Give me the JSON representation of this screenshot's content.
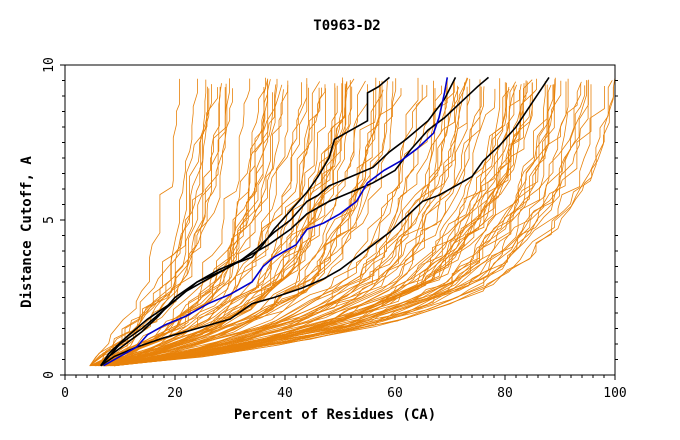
{
  "chart_data": {
    "type": "line",
    "title": "T0963-D2",
    "xlabel": "Percent of Residues (CA)",
    "ylabel": "Distance Cutoff, A",
    "xlim": [
      0,
      100
    ],
    "ylim": [
      0,
      10
    ],
    "x_ticks": [
      0,
      20,
      40,
      60,
      80,
      100
    ],
    "y_ticks": [
      0,
      5,
      10
    ],
    "grid": false,
    "legend": "none",
    "colors": {
      "background_models": "#e8820a",
      "highlight_black": "#000000",
      "highlight_blue": "#0000cc"
    },
    "background_series_count": 120,
    "background_band": {
      "left_edge": [
        [
          4.5,
          0.3
        ],
        [
          8,
          1.2
        ],
        [
          11,
          2.1
        ],
        [
          13.5,
          3.0
        ],
        [
          15,
          4.0
        ],
        [
          16,
          5.0
        ],
        [
          17,
          6.0
        ],
        [
          18,
          7.0
        ],
        [
          19,
          8.0
        ],
        [
          19.5,
          9.0
        ],
        [
          20,
          9.6
        ]
      ],
      "right_edge": [
        [
          9,
          0.3
        ],
        [
          22,
          0.5
        ],
        [
          40,
          1.0
        ],
        [
          58,
          1.6
        ],
        [
          72,
          2.4
        ],
        [
          80,
          3.0
        ],
        [
          86,
          4.0
        ],
        [
          91,
          5.0
        ],
        [
          95,
          6.0
        ],
        [
          98,
          7.5
        ],
        [
          99.5,
          8.5
        ],
        [
          100,
          9.6
        ]
      ]
    },
    "series": [
      {
        "color": "#000000",
        "points": [
          [
            6.5,
            0.3
          ],
          [
            8,
            0.6
          ],
          [
            10,
            1.0
          ],
          [
            14,
            1.5
          ],
          [
            18,
            2.1
          ],
          [
            22,
            2.7
          ],
          [
            27,
            3.2
          ],
          [
            31,
            3.6
          ],
          [
            34,
            3.8
          ],
          [
            36,
            4.2
          ],
          [
            38,
            4.7
          ],
          [
            40,
            5.1
          ],
          [
            42,
            5.5
          ],
          [
            44,
            5.9
          ],
          [
            46,
            6.4
          ],
          [
            48,
            7.0
          ],
          [
            49,
            7.6
          ],
          [
            52,
            7.9
          ],
          [
            55,
            8.2
          ],
          [
            55,
            9.1
          ],
          [
            57,
            9.3
          ],
          [
            59,
            9.6
          ]
        ]
      },
      {
        "color": "#000000",
        "points": [
          [
            6.5,
            0.3
          ],
          [
            8,
            0.6
          ],
          [
            11,
            1.0
          ],
          [
            14,
            1.4
          ],
          [
            17,
            1.9
          ],
          [
            20,
            2.5
          ],
          [
            24,
            3.0
          ],
          [
            28,
            3.4
          ],
          [
            32,
            3.7
          ],
          [
            35,
            4.1
          ],
          [
            38,
            4.6
          ],
          [
            41,
            5.0
          ],
          [
            44,
            5.6
          ],
          [
            46,
            5.8
          ],
          [
            48,
            6.1
          ],
          [
            52,
            6.4
          ],
          [
            56,
            6.7
          ],
          [
            59,
            7.2
          ],
          [
            62,
            7.6
          ],
          [
            66,
            8.2
          ],
          [
            69,
            8.9
          ],
          [
            71,
            9.6
          ]
        ]
      },
      {
        "color": "#000000",
        "points": [
          [
            6.5,
            0.3
          ],
          [
            9,
            0.6
          ],
          [
            13,
            0.9
          ],
          [
            18,
            1.2
          ],
          [
            24,
            1.5
          ],
          [
            30,
            1.8
          ],
          [
            34,
            2.3
          ],
          [
            38,
            2.5
          ],
          [
            43,
            2.8
          ],
          [
            47,
            3.1
          ],
          [
            50,
            3.4
          ],
          [
            53,
            3.8
          ],
          [
            56,
            4.2
          ],
          [
            59,
            4.6
          ],
          [
            62,
            5.1
          ],
          [
            65,
            5.6
          ],
          [
            68,
            5.8
          ],
          [
            71,
            6.1
          ],
          [
            74,
            6.4
          ],
          [
            76,
            6.9
          ],
          [
            79,
            7.4
          ],
          [
            82,
            8.0
          ],
          [
            85,
            8.8
          ],
          [
            88,
            9.6
          ]
        ]
      },
      {
        "color": "#000000",
        "points": [
          [
            6.5,
            0.3
          ],
          [
            8,
            0.7
          ],
          [
            11,
            1.2
          ],
          [
            15,
            1.8
          ],
          [
            20,
            2.4
          ],
          [
            24,
            3.0
          ],
          [
            29,
            3.4
          ],
          [
            33,
            3.8
          ],
          [
            37,
            4.2
          ],
          [
            41,
            4.7
          ],
          [
            44,
            5.2
          ],
          [
            48,
            5.6
          ],
          [
            52,
            5.9
          ],
          [
            56,
            6.2
          ],
          [
            60,
            6.6
          ],
          [
            63,
            7.3
          ],
          [
            66,
            7.9
          ],
          [
            69,
            8.3
          ],
          [
            72,
            8.8
          ],
          [
            75,
            9.3
          ],
          [
            77,
            9.6
          ]
        ]
      },
      {
        "color": "#0000cc",
        "points": [
          [
            7,
            0.3
          ],
          [
            10,
            0.6
          ],
          [
            13,
            0.9
          ],
          [
            15,
            1.3
          ],
          [
            18,
            1.6
          ],
          [
            22,
            1.9
          ],
          [
            26,
            2.3
          ],
          [
            30,
            2.6
          ],
          [
            34,
            3.0
          ],
          [
            36,
            3.5
          ],
          [
            38,
            3.8
          ],
          [
            40,
            4.0
          ],
          [
            42,
            4.2
          ],
          [
            44,
            4.7
          ],
          [
            47,
            4.9
          ],
          [
            50,
            5.2
          ],
          [
            53,
            5.6
          ],
          [
            55,
            6.2
          ],
          [
            58,
            6.6
          ],
          [
            61,
            6.9
          ],
          [
            64,
            7.3
          ],
          [
            67,
            7.8
          ],
          [
            68,
            8.3
          ],
          [
            69,
            9.1
          ],
          [
            69.5,
            9.6
          ]
        ]
      }
    ]
  }
}
